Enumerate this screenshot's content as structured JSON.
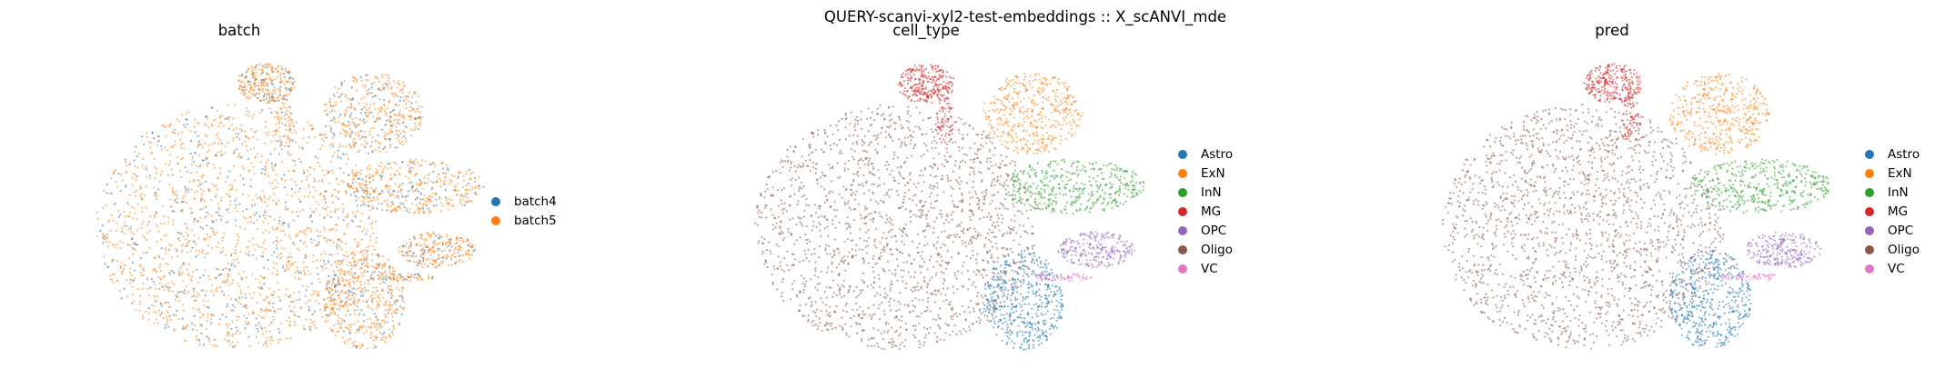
{
  "suptitle": "QUERY-scanvi-xyl2-test-embeddings :: X_scANVI_mde",
  "chart_data": [
    {
      "type": "scatter",
      "title": "batch",
      "colors": {
        "batch4": "#1f77b4",
        "batch5": "#ff7f0e"
      },
      "legend": [
        "batch4",
        "batch5"
      ],
      "legend_placement": "right",
      "grid": false
    },
    {
      "type": "scatter",
      "title": "cell_type",
      "colors": {
        "Astro": "#1f77b4",
        "ExN": "#ff7f0e",
        "InN": "#2ca02c",
        "MG": "#d62728",
        "OPC": "#9467bd",
        "Oligo": "#8c564b",
        "VC": "#e377c2"
      },
      "legend": [
        "Astro",
        "ExN",
        "InN",
        "MG",
        "OPC",
        "Oligo",
        "VC"
      ],
      "legend_placement": "right",
      "grid": false
    },
    {
      "type": "scatter",
      "title": "pred",
      "colors": {
        "Astro": "#1f77b4",
        "ExN": "#ff7f0e",
        "InN": "#2ca02c",
        "MG": "#d62728",
        "OPC": "#9467bd",
        "Oligo": "#8c564b",
        "VC": "#e377c2"
      },
      "legend": [
        "Astro",
        "ExN",
        "InN",
        "MG",
        "OPC",
        "Oligo",
        "VC"
      ],
      "legend_placement": "right",
      "grid": false
    }
  ]
}
